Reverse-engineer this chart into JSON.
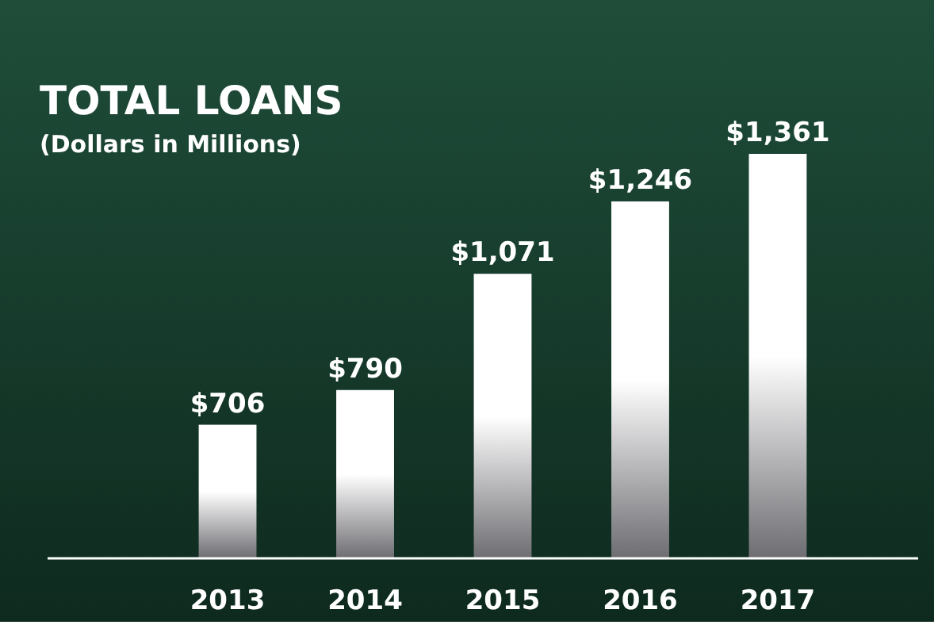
{
  "chart_data": {
    "type": "bar",
    "title": "TOTAL LOANS",
    "subtitle": "(Dollars in Millions)",
    "categories": [
      "2013",
      "2014",
      "2015",
      "2016",
      "2017"
    ],
    "values": [
      706,
      790,
      1071,
      1246,
      1361
    ],
    "value_labels": [
      "$706",
      "$790",
      "$1,071",
      "$1,246",
      "$1,361"
    ],
    "color": "#ffffff",
    "ylim": [
      383,
      1361
    ],
    "tick_labels": "x"
  }
}
